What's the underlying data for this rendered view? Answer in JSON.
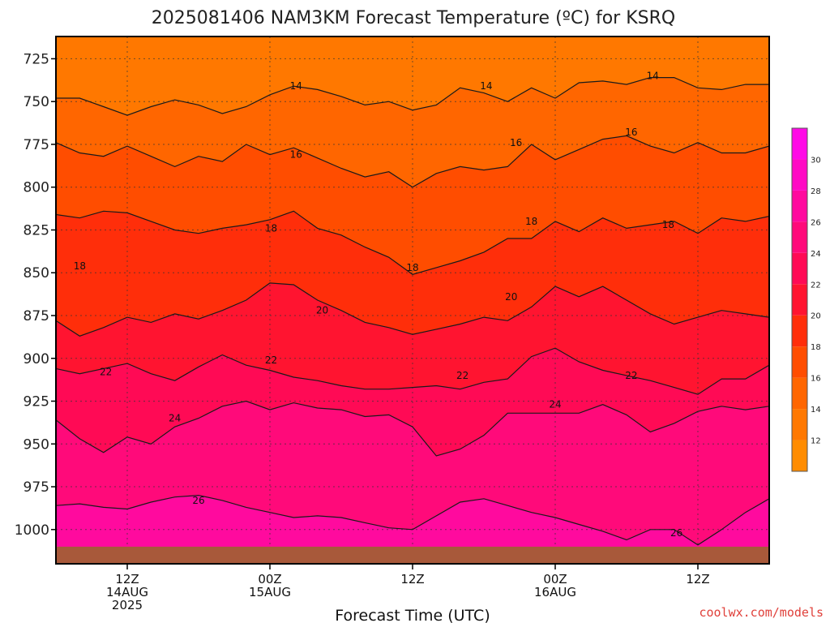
{
  "chart_data": {
    "type": "heatmap",
    "title": "2025081406 NAM3KM Forecast Temperature (ºC) for KSRQ",
    "xlabel": "Forecast Time (UTC)",
    "ylabel": "",
    "y_axis": {
      "reversed": true,
      "ylim": [
        712,
        1020
      ],
      "ticks": [
        725,
        750,
        775,
        800,
        825,
        850,
        875,
        900,
        925,
        950,
        975,
        1000
      ]
    },
    "x_axis": {
      "xlim_hours_from_start": [
        0,
        60
      ],
      "ticks": [
        {
          "hour": 6,
          "line1": "12Z",
          "line2": "14AUG",
          "line3": "2025"
        },
        {
          "hour": 18,
          "line1": "00Z",
          "line2": "15AUG",
          "line3": ""
        },
        {
          "hour": 30,
          "line1": "12Z",
          "line2": "",
          "line3": ""
        },
        {
          "hour": 42,
          "line1": "00Z",
          "line2": "16AUG",
          "line3": ""
        },
        {
          "hour": 54,
          "line1": "12Z",
          "line2": "",
          "line3": ""
        }
      ]
    },
    "grid": true,
    "colorbar": {
      "placement": "right",
      "levels": [
        10,
        12,
        14,
        16,
        18,
        20,
        22,
        24,
        26,
        28,
        30,
        32
      ],
      "tick_labels": [
        12,
        14,
        16,
        18,
        20,
        22,
        24,
        26,
        28,
        30
      ],
      "colors": [
        "#ff8c00",
        "#ff7800",
        "#ff6600",
        "#ff4d00",
        "#ff2e0a",
        "#ff1430",
        "#ff0a55",
        "#ff0a7a",
        "#ff0a9e",
        "#ff0ac4",
        "#ff0ae6"
      ]
    },
    "contours": [
      {
        "level": 14,
        "label": "14",
        "hours": [
          0,
          2,
          4,
          6,
          8,
          10,
          12,
          14,
          16,
          18,
          20,
          22,
          24,
          26,
          28,
          30,
          32,
          34,
          36,
          38,
          40,
          42,
          44,
          46,
          48,
          50,
          52,
          54,
          56,
          58,
          60
        ],
        "pressure": [
          748,
          748,
          753,
          758,
          753,
          749,
          752,
          757,
          753,
          746,
          741,
          743,
          747,
          752,
          750,
          755,
          752,
          742,
          745,
          750,
          742,
          748,
          739,
          738,
          740,
          736,
          736,
          742,
          743,
          740,
          740
        ]
      },
      {
        "level": 16,
        "label": "16",
        "hours": [
          0,
          2,
          4,
          6,
          8,
          10,
          12,
          14,
          16,
          18,
          20,
          22,
          24,
          26,
          28,
          30,
          32,
          34,
          36,
          38,
          40,
          42,
          44,
          46,
          48,
          50,
          52,
          54,
          56,
          58,
          60
        ],
        "pressure": [
          774,
          780,
          782,
          776,
          782,
          788,
          782,
          785,
          775,
          781,
          777,
          783,
          789,
          794,
          791,
          800,
          792,
          788,
          790,
          788,
          775,
          784,
          778,
          772,
          770,
          776,
          780,
          774,
          780,
          780,
          776
        ]
      },
      {
        "level": 18,
        "label": "18",
        "hours": [
          0,
          2,
          4,
          6,
          8,
          10,
          12,
          14,
          16,
          18,
          20,
          22,
          24,
          26,
          28,
          30,
          32,
          34,
          36,
          38,
          40,
          42,
          44,
          46,
          48,
          50,
          52,
          54,
          56,
          58,
          60
        ],
        "pressure": [
          816,
          818,
          814,
          815,
          820,
          825,
          827,
          824,
          822,
          819,
          814,
          824,
          828,
          835,
          841,
          851,
          847,
          843,
          838,
          830,
          830,
          820,
          826,
          818,
          824,
          822,
          820,
          827,
          818,
          820,
          817
        ]
      },
      {
        "level": 20,
        "label": "20",
        "hours": [
          0,
          2,
          4,
          6,
          8,
          10,
          12,
          14,
          16,
          18,
          20,
          22,
          24,
          26,
          28,
          30,
          32,
          34,
          36,
          38,
          40,
          42,
          44,
          46,
          48,
          50,
          52,
          54,
          56,
          58,
          60
        ],
        "pressure": [
          878,
          887,
          882,
          876,
          879,
          874,
          877,
          872,
          866,
          856,
          857,
          866,
          872,
          879,
          882,
          886,
          883,
          880,
          876,
          878,
          870,
          858,
          864,
          858,
          866,
          874,
          880,
          876,
          872,
          874,
          876
        ]
      },
      {
        "level": 22,
        "label": "22",
        "hours": [
          0,
          2,
          4,
          6,
          8,
          10,
          12,
          14,
          16,
          18,
          20,
          22,
          24,
          26,
          28,
          30,
          32,
          34,
          36,
          38,
          40,
          42,
          44,
          46,
          48,
          50,
          52,
          54,
          56,
          58,
          60
        ],
        "pressure": [
          906,
          909,
          906,
          903,
          909,
          913,
          905,
          898,
          904,
          907,
          911,
          913,
          916,
          918,
          918,
          917,
          916,
          918,
          914,
          912,
          899,
          894,
          902,
          907,
          910,
          913,
          917,
          921,
          912,
          912,
          904
        ]
      },
      {
        "level": 24,
        "label": "24",
        "hours": [
          0,
          2,
          4,
          6,
          8,
          10,
          12,
          14,
          16,
          18,
          20,
          22,
          24,
          26,
          28,
          30,
          32,
          34,
          36,
          38,
          40,
          42,
          44,
          46,
          48,
          50,
          52,
          54,
          56,
          58,
          60
        ],
        "pressure": [
          936,
          947,
          955,
          946,
          950,
          940,
          935,
          928,
          925,
          930,
          926,
          929,
          930,
          934,
          933,
          940,
          957,
          953,
          945,
          932,
          932,
          932,
          932,
          927,
          933,
          943,
          938,
          931,
          928,
          930,
          928
        ]
      },
      {
        "level": 26,
        "label": "26",
        "hours": [
          0,
          2,
          4,
          6,
          8,
          10,
          12,
          14,
          16,
          18,
          20,
          22,
          24,
          26,
          28,
          30,
          32,
          34,
          36,
          38,
          40,
          42,
          44,
          46,
          48,
          50,
          52,
          54,
          56,
          58,
          60
        ],
        "pressure": [
          986,
          985,
          987,
          988,
          984,
          981,
          980,
          983,
          987,
          990,
          993,
          992,
          993,
          996,
          999,
          1000,
          992,
          984,
          982,
          986,
          990,
          993,
          997,
          1001,
          1006,
          1000,
          1000,
          1009,
          1000,
          990,
          982
        ]
      }
    ],
    "contour_labels": [
      {
        "level": 14,
        "label": "14",
        "hour": 20.2,
        "pressure": 741
      },
      {
        "level": 14,
        "label": "14",
        "hour": 36.2,
        "pressure": 741
      },
      {
        "level": 14,
        "label": "14",
        "hour": 50.2,
        "pressure": 735
      },
      {
        "level": 16,
        "label": "16",
        "hour": 20.2,
        "pressure": 781
      },
      {
        "level": 16,
        "label": "16",
        "hour": 38.7,
        "pressure": 774
      },
      {
        "level": 16,
        "label": "16",
        "hour": 48.4,
        "pressure": 768
      },
      {
        "level": 18,
        "label": "18",
        "hour": 2.0,
        "pressure": 846
      },
      {
        "level": 18,
        "label": "18",
        "hour": 18.1,
        "pressure": 824
      },
      {
        "level": 18,
        "label": "18",
        "hour": 30.0,
        "pressure": 847
      },
      {
        "level": 18,
        "label": "18",
        "hour": 40.0,
        "pressure": 820
      },
      {
        "level": 18,
        "label": "18",
        "hour": 51.5,
        "pressure": 822
      },
      {
        "level": 20,
        "label": "20",
        "hour": 22.4,
        "pressure": 872
      },
      {
        "level": 20,
        "label": "20",
        "hour": 38.3,
        "pressure": 864
      },
      {
        "level": 22,
        "label": "22",
        "hour": 4.2,
        "pressure": 908
      },
      {
        "level": 22,
        "label": "22",
        "hour": 18.1,
        "pressure": 901
      },
      {
        "level": 22,
        "label": "22",
        "hour": 34.2,
        "pressure": 910
      },
      {
        "level": 22,
        "label": "22",
        "hour": 48.4,
        "pressure": 910
      },
      {
        "level": 24,
        "label": "24",
        "hour": 10.0,
        "pressure": 935
      },
      {
        "level": 24,
        "label": "24",
        "hour": 42.0,
        "pressure": 927
      },
      {
        "level": 26,
        "label": "26",
        "hour": 12.0,
        "pressure": 983
      },
      {
        "level": 26,
        "label": "26",
        "hour": 52.2,
        "pressure": 1002
      }
    ],
    "ground_pressure": 1010
  },
  "credit": "coolwx.com/models"
}
